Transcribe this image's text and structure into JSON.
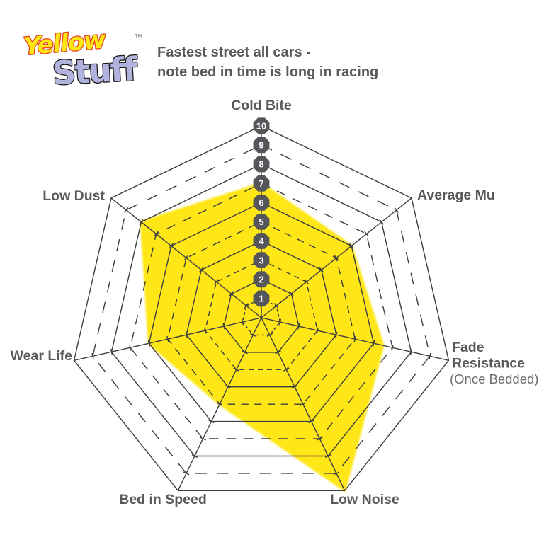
{
  "logo": {
    "word1": "Yellow",
    "word2": "Stuff",
    "trademark": "™"
  },
  "header": {
    "title_line1": "Fastest street all cars -",
    "title_line2": "note bed in time is long in racing"
  },
  "colors": {
    "area_fill": "#ffe617",
    "grid": "#3d3d3f",
    "label": "#58595b",
    "sublabel": "#6d6e71",
    "badge": "#55565a",
    "badge_text": "#ffffff",
    "logo_yellow": "#ffe715",
    "logo_yellow_outline": "#e8431e",
    "logo_purple": "#b1b3de",
    "logo_purple_outline": "#1d1d1b",
    "background": "#ffffff"
  },
  "chart_data": {
    "type": "radar",
    "title": "Fastest street all cars - note bed in time is long in racing",
    "grid_shape": "heptagon",
    "legend": "none",
    "start_axis": "top",
    "direction": "clockwise",
    "axes": [
      {
        "label": "Cold Bite",
        "value": 7
      },
      {
        "label": "Average Mu",
        "value": 6
      },
      {
        "label": "Fade Resistance",
        "label_lines": [
          "Fade",
          "Resistance"
        ],
        "sublabel": "(Once Bedded)",
        "value": 6.5
      },
      {
        "label": "Low Noise",
        "value": 10
      },
      {
        "label": "Bed in Speed",
        "value": 5
      },
      {
        "label": "Wear Life",
        "value": 6
      },
      {
        "label": "Low Dust",
        "value": 8
      }
    ],
    "scale": {
      "min": 0,
      "max": 10,
      "ring_labels": [
        "1",
        "2",
        "3",
        "4",
        "5",
        "6",
        "7",
        "8",
        "9",
        "10"
      ],
      "solid_rings": [
        2,
        4,
        6,
        8,
        10
      ],
      "dashed_rings": [
        1,
        3,
        5,
        7,
        9
      ]
    }
  }
}
